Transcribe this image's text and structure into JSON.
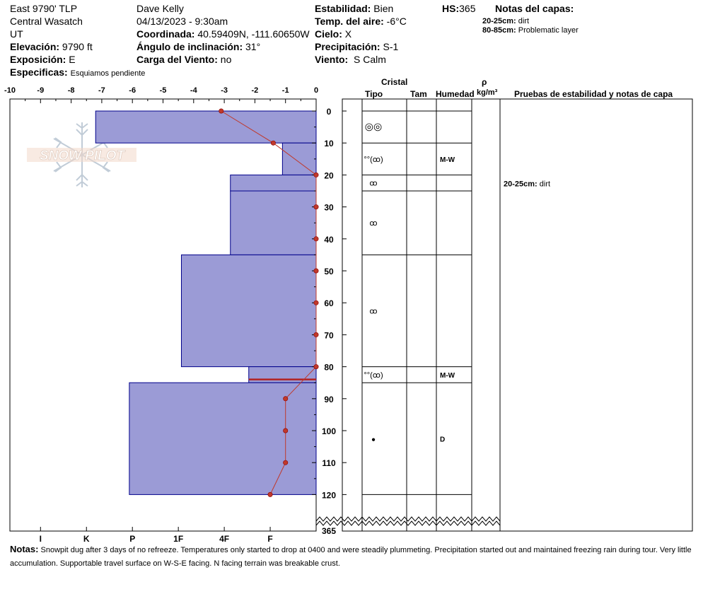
{
  "header": {
    "location": [
      "East 9790' TLP",
      "Central Wasatch",
      "UT"
    ],
    "elevation_label": "Elevación:",
    "elevation": "9790 ft",
    "aspect_label": "Exposición:",
    "aspect": "E",
    "specifics_label": "Especificas:",
    "specifics": "Esquiamos pendiente",
    "observer": "Dave Kelly",
    "datetime": "04/13/2023 - 9:30am",
    "coord_label": "Coordinada:",
    "coord": "40.59409N, -111.60650W",
    "slope_label": "Ángulo de inclinación:",
    "slope": "31°",
    "wind_load_label": "Carga del Viento:",
    "wind_load": "no",
    "stability_label": "Estabilidad:",
    "stability": "Bien",
    "air_temp_label": "Temp. del aire:",
    "air_temp": "-6°C",
    "sky_label": "Cielo:",
    "sky": "X",
    "precip_label": "Precipitación:",
    "precip": "S-1",
    "wind_label": "Viento:",
    "wind": "S Calm",
    "hs_label": "HS:",
    "hs": "365",
    "layer_notes_title": "Notas del capas:",
    "layer_notes": [
      {
        "range": "20-25cm:",
        "text": "dirt"
      },
      {
        "range": "80-85cm:",
        "text": "Problematic layer"
      }
    ]
  },
  "logo_text": "SNOW PILOT",
  "columns": {
    "crystal": "Cristal",
    "type": "Tipo",
    "size": "Tam",
    "moisture": "Humedad",
    "rho": "ρ",
    "density_unit": "kg/m³",
    "tests": "Pruebas de estabilidad y notas de capa"
  },
  "test_notes": [
    {
      "depth": 22.5,
      "range": "20-25cm:",
      "text": "dirt"
    }
  ],
  "colors": {
    "profile_fill": "#9b9bd6",
    "profile_edge": "#00008b",
    "temp_line": "#c0392b"
  },
  "notes_label": "Notas:",
  "notes": "Snowpit dug after 3 days of no refreeze. Temperatures only started to drop at 0400 and were steadily plummeting. Precipitation started out and maintained freezing rain during tour. Very little accumulation. Supportable travel surface on W-S-E facing. N facing terrain was breakable crust.",
  "chart_data": {
    "type": "area",
    "temp_axis": {
      "label_values": [
        -10,
        -9,
        -8,
        -7,
        -6,
        -5,
        -4,
        -3,
        -2,
        -1,
        0
      ],
      "range": [
        -10,
        0
      ]
    },
    "depth_axis": {
      "range": [
        0,
        125
      ],
      "ticks": [
        0,
        10,
        20,
        30,
        40,
        50,
        60,
        70,
        80,
        90,
        100,
        110,
        120
      ],
      "bottom_label": "365"
    },
    "hardness_axis": {
      "labels": [
        "I",
        "K",
        "P",
        "1F",
        "4F",
        "F"
      ]
    },
    "layers": [
      {
        "top": 0,
        "bottom": 10,
        "hardness_index": 7.2,
        "grain": "rounding",
        "moisture": ""
      },
      {
        "top": 10,
        "bottom": 20,
        "hardness_index": 1.1,
        "grain": "melt-freeze",
        "moisture": "M-W"
      },
      {
        "top": 20,
        "bottom": 25,
        "hardness_index": 2.8,
        "grain": "melt-freeze",
        "moisture": ""
      },
      {
        "top": 25,
        "bottom": 45,
        "hardness_index": 2.8,
        "grain": "melt-freeze",
        "moisture": ""
      },
      {
        "top": 45,
        "bottom": 80,
        "hardness_index": 4.4,
        "grain": "melt-freeze",
        "moisture": ""
      },
      {
        "top": 80,
        "bottom": 85,
        "hardness_index": 2.2,
        "grain": "melt-freeze",
        "moisture": "M-W"
      },
      {
        "top": 85,
        "bottom": 120,
        "hardness_index": 6.1,
        "grain": "ice",
        "moisture": "D"
      }
    ],
    "problem_layer": {
      "depth": 84
    },
    "temperature": {
      "depth": [
        0,
        10,
        20,
        30,
        40,
        50,
        60,
        70,
        80,
        90,
        100,
        110,
        120
      ],
      "temp": [
        -3.1,
        -1.4,
        0,
        0,
        0,
        0,
        0,
        0,
        0,
        -1.0,
        -1.0,
        -1.0,
        -1.5
      ]
    }
  }
}
